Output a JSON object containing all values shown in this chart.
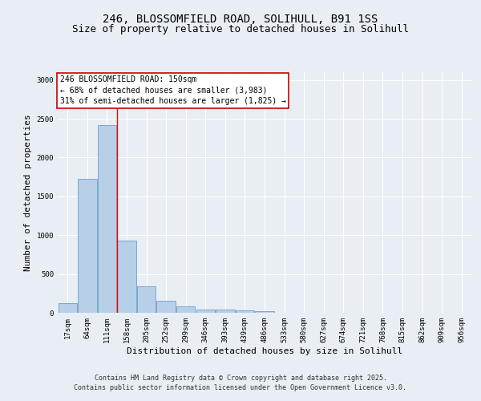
{
  "title_line1": "246, BLOSSOMFIELD ROAD, SOLIHULL, B91 1SS",
  "title_line2": "Size of property relative to detached houses in Solihull",
  "xlabel": "Distribution of detached houses by size in Solihull",
  "ylabel": "Number of detached properties",
  "categories": [
    "17sqm",
    "64sqm",
    "111sqm",
    "158sqm",
    "205sqm",
    "252sqm",
    "299sqm",
    "346sqm",
    "393sqm",
    "439sqm",
    "486sqm",
    "533sqm",
    "580sqm",
    "627sqm",
    "674sqm",
    "721sqm",
    "768sqm",
    "815sqm",
    "862sqm",
    "909sqm",
    "956sqm"
  ],
  "values": [
    125,
    1725,
    2420,
    925,
    340,
    155,
    85,
    45,
    45,
    30,
    20,
    0,
    0,
    0,
    0,
    0,
    0,
    0,
    0,
    0,
    0
  ],
  "bar_color": "#b8cfe8",
  "bar_edge_color": "#6aa0cc",
  "red_line_x": 2.5,
  "annotation_text": "246 BLOSSOMFIELD ROAD: 150sqm\n← 68% of detached houses are smaller (3,983)\n31% of semi-detached houses are larger (1,825) →",
  "annotation_box_color": "#ffffff",
  "annotation_box_edge_color": "#cc0000",
  "background_color": "#e8eef4",
  "grid_color": "#ffffff",
  "ylim": [
    0,
    3100
  ],
  "yticks": [
    0,
    500,
    1000,
    1500,
    2000,
    2500,
    3000
  ],
  "footer_line1": "Contains HM Land Registry data © Crown copyright and database right 2025.",
  "footer_line2": "Contains public sector information licensed under the Open Government Licence v3.0.",
  "title_fontsize": 10,
  "subtitle_fontsize": 9,
  "tick_fontsize": 6.5,
  "label_fontsize": 8,
  "annotation_fontsize": 7,
  "footer_fontsize": 6
}
